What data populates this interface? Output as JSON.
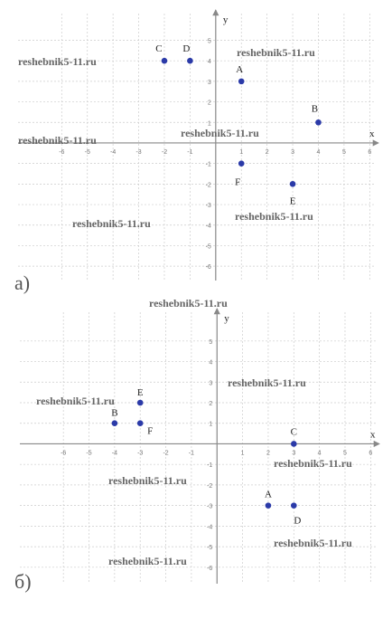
{
  "chart_data": [
    {
      "type": "scatter",
      "panel_label": "а)",
      "x_label": "x",
      "y_label": "y",
      "point_labels": [
        "A",
        "B",
        "C",
        "D",
        "E",
        "F"
      ],
      "x": [
        1,
        4,
        -2,
        -1,
        3,
        1
      ],
      "values": [
        3,
        1,
        4,
        4,
        -2,
        -1
      ],
      "color": "#2b3aa8",
      "grid": true,
      "xlim": [
        -7.7,
        6.2
      ],
      "ylim": [
        -6.7,
        6.3
      ],
      "xticks": [
        -6,
        -5,
        -4,
        -3,
        -2,
        -1,
        1,
        2,
        3,
        4,
        5,
        6
      ],
      "yticks": [
        5,
        4,
        3,
        2,
        1,
        -1,
        -2,
        -3,
        -4,
        -5,
        -6
      ]
    },
    {
      "type": "scatter",
      "panel_label": "б)",
      "x_label": "x",
      "y_label": "y",
      "point_labels": [
        "A",
        "B",
        "C",
        "D",
        "E",
        "F"
      ],
      "x": [
        2,
        -4,
        3,
        3,
        -3,
        -3
      ],
      "values": [
        -3,
        1,
        0,
        -3,
        2,
        1
      ],
      "color": "#2b3aa8",
      "grid": true,
      "xlim": [
        -7.7,
        6.2
      ],
      "ylim": [
        -6.8,
        6.4
      ],
      "xticks": [
        -6,
        -5,
        -4,
        -3,
        -2,
        -1,
        1,
        2,
        3,
        4,
        5,
        6
      ],
      "yticks": [
        5,
        4,
        3,
        2,
        1,
        -1,
        -2,
        -3,
        -4,
        -5,
        -6
      ]
    }
  ],
  "watermarks": [
    "reshebnik5-11.ru",
    "reshebnik5-11.ru",
    "reshebnik5-11.ru",
    "reshebnik5-11.ru",
    "reshebnik5-11.ru",
    "reshebnik5-11.ru",
    "reshebnik5-11.ru",
    "reshebnik5-11.ru",
    "reshebnik5-11.ru",
    "reshebnik5-11.ru",
    "reshebnik5-11.ru",
    "reshebnik5-11.ru",
    "reshebnik5-11.ru"
  ]
}
